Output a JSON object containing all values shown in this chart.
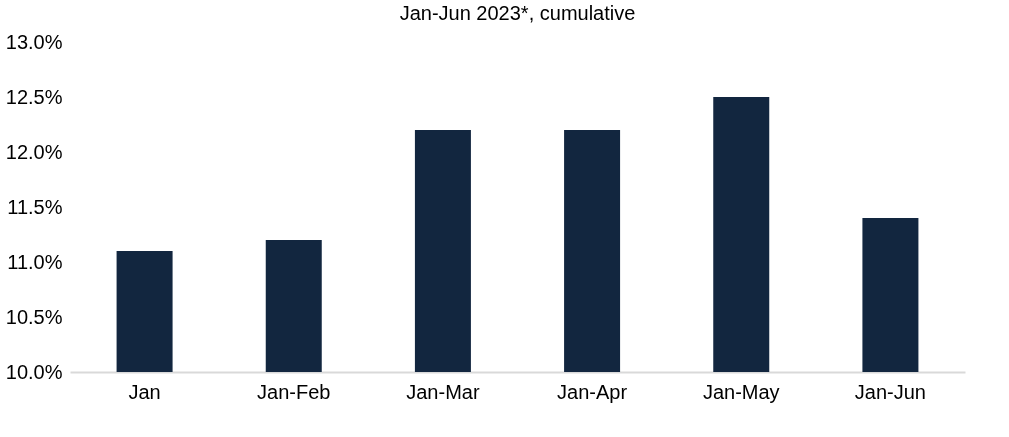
{
  "chart_data": {
    "type": "bar",
    "title": "Jan-Jun 2023*, cumulative",
    "categories": [
      "Jan",
      "Jan-Feb",
      "Jan-Mar",
      "Jan-Apr",
      "Jan-May",
      "Jan-Jun"
    ],
    "values": [
      11.1,
      11.2,
      12.2,
      12.2,
      12.5,
      11.4
    ],
    "color": "#12263f",
    "ylim": [
      10,
      13
    ],
    "yticks": [
      {
        "value": 10,
        "label": "10.0%"
      },
      {
        "value": 10.5,
        "label": "10.5%"
      },
      {
        "value": 11,
        "label": "11.0%"
      },
      {
        "value": 11.5,
        "label": "11.5%"
      },
      {
        "value": 12,
        "label": "12.0%"
      },
      {
        "value": 12.5,
        "label": "12.5%"
      },
      {
        "value": 13,
        "label": "13.0%"
      }
    ],
    "grid": false
  }
}
